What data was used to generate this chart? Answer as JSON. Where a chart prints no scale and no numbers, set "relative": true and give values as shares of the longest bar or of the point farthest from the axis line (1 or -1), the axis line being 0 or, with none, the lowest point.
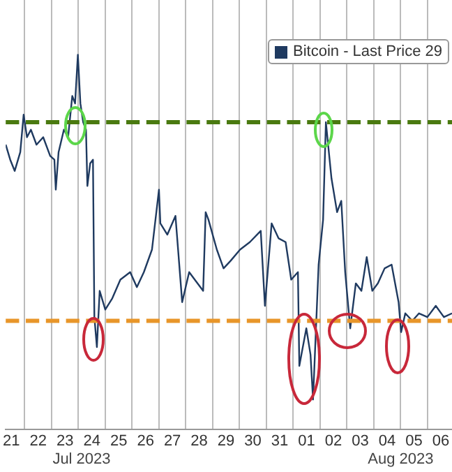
{
  "chart_data": {
    "type": "line",
    "relative": true,
    "xlim": [
      "2023-07-21T07:00",
      "2023-08-06T22:00"
    ],
    "xticks": [
      {
        "value": "2023-07-21T12:00",
        "label": "21"
      },
      {
        "value": "2023-07-22T00:00",
        "label": null
      },
      {
        "value": "2023-07-22T12:00",
        "label": "22"
      },
      {
        "value": "2023-07-23T00:00",
        "label": null
      },
      {
        "value": "2023-07-23T12:00",
        "label": "23"
      },
      {
        "value": "2023-07-24T00:00",
        "label": null
      },
      {
        "value": "2023-07-24T12:00",
        "label": "24"
      },
      {
        "value": "2023-07-25T00:00",
        "label": null
      },
      {
        "value": "2023-07-25T12:00",
        "label": "25"
      },
      {
        "value": "2023-07-26T00:00",
        "label": null
      },
      {
        "value": "2023-07-26T12:00",
        "label": "26"
      },
      {
        "value": "2023-07-27T00:00",
        "label": null
      },
      {
        "value": "2023-07-27T12:00",
        "label": "27"
      },
      {
        "value": "2023-07-28T00:00",
        "label": null
      },
      {
        "value": "2023-07-28T12:00",
        "label": "28"
      },
      {
        "value": "2023-07-29T00:00",
        "label": null
      },
      {
        "value": "2023-07-29T12:00",
        "label": "29"
      },
      {
        "value": "2023-07-30T00:00",
        "label": null
      },
      {
        "value": "2023-07-30T12:00",
        "label": "30"
      },
      {
        "value": "2023-07-31T00:00",
        "label": null
      },
      {
        "value": "2023-07-31T12:00",
        "label": "31"
      },
      {
        "value": "2023-08-01T00:00",
        "label": null
      },
      {
        "value": "2023-08-01T12:00",
        "label": "01"
      },
      {
        "value": "2023-08-02T00:00",
        "label": null
      },
      {
        "value": "2023-08-02T12:00",
        "label": "02"
      },
      {
        "value": "2023-08-03T00:00",
        "label": null
      },
      {
        "value": "2023-08-03T12:00",
        "label": "03"
      },
      {
        "value": "2023-08-04T00:00",
        "label": null
      },
      {
        "value": "2023-08-04T12:00",
        "label": "04"
      },
      {
        "value": "2023-08-05T00:00",
        "label": null
      },
      {
        "value": "2023-08-05T12:00",
        "label": "05"
      },
      {
        "value": "2023-08-06T00:00",
        "label": null
      },
      {
        "value": "2023-08-06T12:00",
        "label": "06"
      }
    ],
    "grid": "x",
    "legend": "top right",
    "marker": "none",
    "line_style": "solid",
    "annotations": [
      "Jul 2023",
      "Aug 2023"
    ],
    "ref_lines": [
      {
        "axis": "y",
        "value": 0.82,
        "color": "#4a7a10",
        "line_style": "dashed"
      },
      {
        "axis": "y",
        "value": 0.29,
        "color": "#e8962a",
        "line_style": "dashed"
      }
    ],
    "series": [
      {
        "name": "Bitcoin - Last Price 29",
        "color": "#1f3a60",
        "x": [
          "2023-07-21T07:00",
          "2023-07-21T11:00",
          "2023-07-21T15:00",
          "2023-07-21T20:00",
          "2023-07-21T23:00",
          "2023-07-22T02:00",
          "2023-07-22T05:30",
          "2023-07-22T10:30",
          "2023-07-22T16:30",
          "2023-07-22T22:45",
          "2023-07-23T02:30",
          "2023-07-23T03:45",
          "2023-07-23T06:15",
          "2023-07-23T11:00",
          "2023-07-23T14:45",
          "2023-07-23T18:30",
          "2023-07-23T21:00",
          "2023-07-23T23:30",
          "2023-07-24T01:45",
          "2023-07-24T04:15",
          "2023-07-24T06:45",
          "2023-07-24T08:00",
          "2023-07-24T10:30",
          "2023-07-24T13:00",
          "2023-07-24T14:15",
          "2023-07-24T16:30",
          "2023-07-24T19:00",
          "2023-07-25T00:00",
          "2023-07-25T06:15",
          "2023-07-25T13:30",
          "2023-07-25T22:15",
          "2023-07-26T04:15",
          "2023-07-26T10:30",
          "2023-07-26T17:45",
          "2023-07-27T00:00",
          "2023-07-27T01:15",
          "2023-07-27T07:30",
          "2023-07-27T14:45",
          "2023-07-27T20:45",
          "2023-07-28T03:00",
          "2023-07-28T08:00",
          "2023-07-28T15:30",
          "2023-07-28T17:45",
          "2023-07-28T20:15",
          "2023-07-29T03:45",
          "2023-07-29T09:45",
          "2023-07-29T16:00",
          "2023-07-30T00:30",
          "2023-07-30T09:15",
          "2023-07-30T19:00",
          "2023-07-30T22:45",
          "2023-07-31T04:45",
          "2023-07-31T11:00",
          "2023-07-31T17:15",
          "2023-07-31T22:15",
          "2023-08-01T04:15",
          "2023-08-01T05:30",
          "2023-08-01T11:45",
          "2023-08-01T15:30",
          "2023-08-01T17:45",
          "2023-08-01T22:45",
          "2023-08-02T02:45",
          "2023-08-02T05:15",
          "2023-08-02T10:15",
          "2023-08-02T15:15",
          "2023-08-02T19:00",
          "2023-08-02T22:30",
          "2023-08-03T03:00",
          "2023-08-03T08:00",
          "2023-08-03T13:00",
          "2023-08-03T17:45",
          "2023-08-03T22:45",
          "2023-08-04T03:45",
          "2023-08-04T09:45",
          "2023-08-04T16:00",
          "2023-08-04T22:15",
          "2023-08-05T00:30",
          "2023-08-05T04:15",
          "2023-08-05T10:30",
          "2023-08-05T16:30",
          "2023-08-06T00:00",
          "2023-08-06T07:30",
          "2023-08-06T14:45",
          "2023-08-06T22:00"
        ],
        "values": [
          0.76,
          0.72,
          0.69,
          0.74,
          0.84,
          0.78,
          0.8,
          0.76,
          0.78,
          0.73,
          0.72,
          0.64,
          0.74,
          0.8,
          0.78,
          0.89,
          0.87,
          1.0,
          0.87,
          0.82,
          0.8,
          0.65,
          0.71,
          0.72,
          0.3,
          0.22,
          0.37,
          0.32,
          0.35,
          0.4,
          0.42,
          0.38,
          0.42,
          0.48,
          0.64,
          0.55,
          0.52,
          0.57,
          0.34,
          0.42,
          0.4,
          0.37,
          0.58,
          0.56,
          0.48,
          0.43,
          0.45,
          0.48,
          0.5,
          0.53,
          0.33,
          0.55,
          0.51,
          0.5,
          0.4,
          0.42,
          0.17,
          0.27,
          0.2,
          0.08,
          0.44,
          0.56,
          0.82,
          0.67,
          0.58,
          0.61,
          0.42,
          0.27,
          0.39,
          0.37,
          0.46,
          0.37,
          0.39,
          0.43,
          0.44,
          0.34,
          0.26,
          0.31,
          0.29,
          0.31,
          0.3,
          0.33,
          0.3,
          0.31
        ]
      }
    ]
  }
}
